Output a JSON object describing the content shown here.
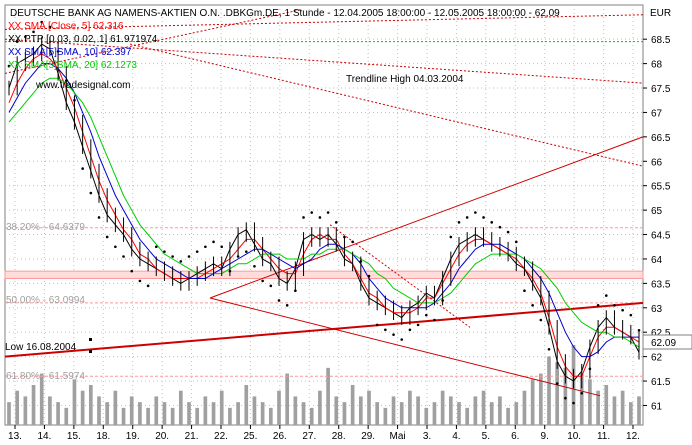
{
  "colors": {
    "price": "#000000",
    "sma5": "#ff0000",
    "sma10": "#0000cc",
    "sma20": "#00cc00",
    "ptp": "#000000",
    "trend": "#ff0000",
    "volume": "#a0a0a0",
    "fib_band": "#ff9999",
    "channel": "#cc0000",
    "grid": "#c0c0c0",
    "frame": "#808080"
  },
  "chart_data": {
    "type": "line",
    "title": "DEUTSCHE BANK AG NAMENS-AKTIEN O.N. .DBKGm.DE, 1 Stunde - 12.04.2005 18:00:00 - 12.05.2005 18:00:00 - 62,09",
    "currency_label": "EUR",
    "last_value_label": "62.09",
    "ylim": [
      60.6,
      69.2
    ],
    "y_ticks": [
      "61",
      "61.5",
      "62",
      "62.5",
      "63",
      "63.5",
      "64",
      "64.5",
      "65",
      "65.5",
      "66",
      "66.5",
      "67",
      "67.5",
      "68",
      "68.5"
    ],
    "x_ticks": [
      "13.",
      "14.",
      "15.",
      "18.",
      "19.",
      "20.",
      "21.",
      "22.",
      "25.",
      "26.",
      "27.",
      "28.",
      "29.",
      "Mai",
      "3.",
      "4.",
      "5.",
      "6.",
      "9.",
      "10.",
      "11.",
      "12."
    ],
    "legend": [
      {
        "label": "XX SMA [Close, 5] 62.316",
        "color": "#ff0000"
      },
      {
        "label": "XX PTP [0.03, 0.02, 1] 61.971974",
        "color": "#000000"
      },
      {
        "label": "XX SMA[5]SMA, 10] 62.397",
        "color": "#0000cc"
      },
      {
        "label": "XX SMA[5]SMA, 20] 62.1273",
        "color": "#00cc00"
      }
    ],
    "watermark": "www.tradesignal.com",
    "annotations": {
      "trendline_high": "Trendline High 04.03.2004",
      "low": "Low 16.08.2004",
      "fib_382": "38.20% - 64.6379",
      "fib_500": "50.00% - 63.0994",
      "fib_618": "61.80% - 61.5974"
    },
    "fib_levels": [
      64.6379,
      63.0994,
      61.5974
    ],
    "series": [
      {
        "name": "Close",
        "values": [
          67.5,
          68.0,
          68.1,
          68.2,
          68.4,
          68.3,
          67.8,
          67.2,
          66.8,
          66.3,
          65.8,
          65.3,
          64.9,
          64.7,
          64.5,
          64.2,
          64.0,
          63.9,
          63.8,
          63.7,
          63.6,
          63.5,
          63.6,
          63.7,
          63.8,
          63.9,
          63.8,
          64.2,
          64.5,
          64.6,
          64.3,
          64.0,
          63.9,
          63.6,
          63.5,
          63.8,
          64.4,
          64.5,
          64.4,
          64.5,
          64.3,
          64.0,
          63.9,
          63.5,
          63.2,
          63.1,
          63.0,
          62.9,
          62.8,
          63.0,
          63.1,
          63.3,
          63.2,
          63.6,
          64.0,
          64.3,
          64.4,
          64.5,
          64.4,
          64.3,
          64.2,
          64.1,
          63.9,
          63.8,
          63.5,
          63.2,
          62.6,
          61.9,
          61.6,
          61.5,
          61.7,
          62.2,
          62.6,
          62.8,
          62.6,
          62.5,
          62.4,
          62.09
        ]
      },
      {
        "name": "SMA 5",
        "values": [
          67.2,
          67.6,
          67.9,
          68.1,
          68.2,
          68.1,
          67.9,
          67.5,
          67.1,
          66.6,
          66.1,
          65.6,
          65.2,
          64.9,
          64.6,
          64.4,
          64.1,
          64.0,
          63.8,
          63.7,
          63.6,
          63.6,
          63.6,
          63.6,
          63.7,
          63.8,
          63.9,
          64.0,
          64.2,
          64.4,
          64.4,
          64.2,
          64.0,
          63.8,
          63.7,
          63.7,
          64.1,
          64.4,
          64.5,
          64.4,
          64.4,
          64.1,
          63.9,
          63.6,
          63.3,
          63.2,
          63.0,
          62.9,
          62.9,
          62.9,
          63.0,
          63.2,
          63.2,
          63.5,
          63.8,
          64.1,
          64.3,
          64.4,
          64.4,
          64.3,
          64.2,
          64.1,
          64.0,
          63.8,
          63.6,
          63.3,
          62.8,
          62.2,
          61.8,
          61.6,
          61.6,
          62.0,
          62.4,
          62.6,
          62.6,
          62.5,
          62.4,
          62.3
        ]
      },
      {
        "name": "SMA 10",
        "values": [
          67.0,
          67.3,
          67.6,
          67.8,
          68.0,
          68.0,
          67.9,
          67.7,
          67.4,
          67.0,
          66.6,
          66.1,
          65.7,
          65.3,
          65.0,
          64.7,
          64.4,
          64.2,
          64.0,
          63.9,
          63.8,
          63.7,
          63.6,
          63.6,
          63.6,
          63.7,
          63.8,
          63.9,
          64.0,
          64.1,
          64.2,
          64.2,
          64.1,
          64.0,
          63.9,
          63.8,
          63.9,
          64.0,
          64.2,
          64.3,
          64.3,
          64.2,
          64.1,
          63.9,
          63.6,
          63.4,
          63.2,
          63.1,
          63.0,
          63.0,
          63.0,
          63.0,
          63.1,
          63.3,
          63.5,
          63.8,
          64.0,
          64.2,
          64.3,
          64.3,
          64.3,
          64.2,
          64.1,
          64.0,
          63.8,
          63.6,
          63.3,
          62.9,
          62.5,
          62.2,
          62.0,
          62.0,
          62.1,
          62.3,
          62.4,
          62.4,
          62.4,
          62.4
        ]
      },
      {
        "name": "SMA 20",
        "values": [
          66.8,
          67.0,
          67.2,
          67.4,
          67.6,
          67.7,
          67.7,
          67.6,
          67.4,
          67.2,
          66.9,
          66.5,
          66.1,
          65.7,
          65.3,
          65.0,
          64.7,
          64.5,
          64.3,
          64.1,
          64.0,
          63.9,
          63.8,
          63.7,
          63.7,
          63.7,
          63.7,
          63.8,
          63.9,
          63.9,
          64.0,
          64.1,
          64.1,
          64.1,
          64.0,
          64.0,
          64.0,
          64.1,
          64.1,
          64.2,
          64.2,
          64.2,
          64.1,
          64.0,
          63.9,
          63.7,
          63.6,
          63.4,
          63.3,
          63.2,
          63.1,
          63.1,
          63.1,
          63.2,
          63.3,
          63.5,
          63.7,
          63.9,
          64.0,
          64.1,
          64.1,
          64.1,
          64.1,
          64.0,
          63.9,
          63.8,
          63.6,
          63.4,
          63.1,
          62.9,
          62.7,
          62.6,
          62.5,
          62.5,
          62.4,
          62.4,
          62.3,
          62.2
        ]
      }
    ],
    "volume": [
      4,
      6,
      5,
      7,
      9,
      5,
      4,
      3,
      8,
      6,
      7,
      5,
      4,
      6,
      3,
      5,
      4,
      3,
      5,
      4,
      3,
      6,
      4,
      3,
      5,
      4,
      6,
      3,
      4,
      7,
      5,
      4,
      3,
      6,
      9,
      5,
      4,
      3,
      6,
      10,
      5,
      4,
      7,
      5,
      6,
      4,
      3,
      5,
      4,
      6,
      5,
      3,
      4,
      6,
      5,
      4,
      3,
      5,
      6,
      4,
      5,
      3,
      4,
      6,
      8,
      9,
      12,
      11,
      10,
      14,
      9,
      8,
      6,
      7,
      5,
      6,
      4,
      5
    ],
    "grid": true,
    "legend_position": "top-left"
  }
}
